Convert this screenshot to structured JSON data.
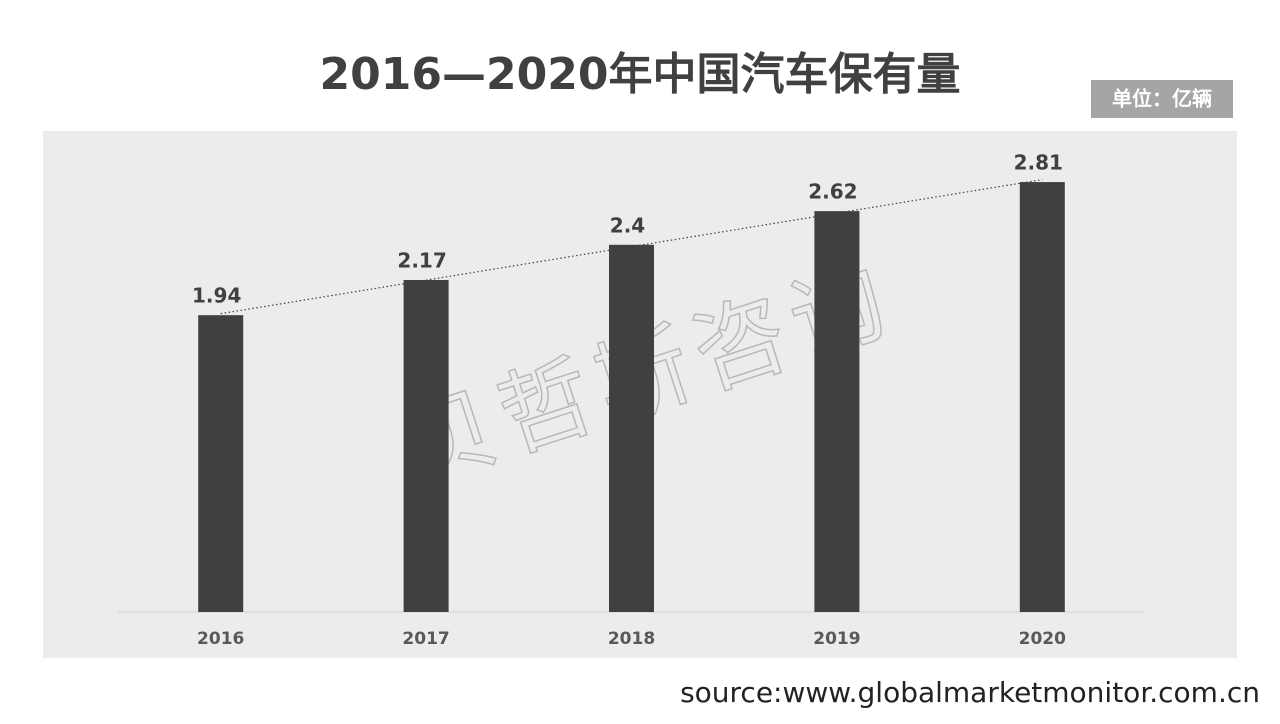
{
  "chart_data": {
    "type": "bar",
    "title": "2016—2020年中国汽车保有量",
    "unit": "单位：亿辆",
    "categories": [
      "2016",
      "2017",
      "2018",
      "2019",
      "2020"
    ],
    "values": [
      1.94,
      2.17,
      2.4,
      2.62,
      2.81
    ],
    "color": "#404040",
    "ylim": [
      0,
      3
    ],
    "trendline": true,
    "data_labels": true,
    "watermark": "贝哲斯咨询",
    "source": "source:www.globalmarketmonitor.com.cn"
  }
}
